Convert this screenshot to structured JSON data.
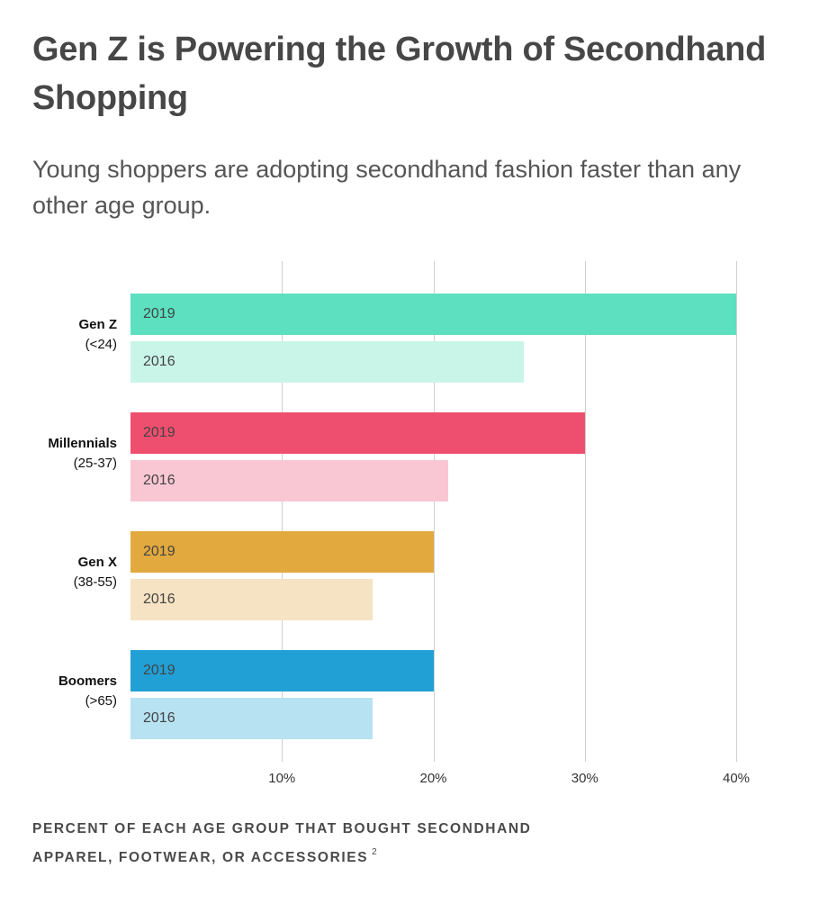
{
  "title": "Gen Z is Powering the Growth of Secondhand Shopping",
  "subtitle": "Young shoppers are adopting secondhand fashion faster than any other age group.",
  "footnote": {
    "text_line1": "PERCENT OF EACH AGE GROUP THAT BOUGHT SECONDHAND",
    "text_line2": "APPAREL, FOOTWEAR, OR ACCESSORIES",
    "ref": "2"
  },
  "chart_data": {
    "type": "bar",
    "orientation": "horizontal",
    "title": "Gen Z is Powering the Growth of Secondhand Shopping",
    "xlabel": "PERCENT OF EACH AGE GROUP THAT BOUGHT SECONDHAND APPAREL, FOOTWEAR, OR ACCESSORIES",
    "xlim": [
      0,
      40
    ],
    "xticks": [
      10,
      20,
      30,
      40
    ],
    "xtick_labels": [
      "10%",
      "20%",
      "30%",
      "40%"
    ],
    "grid": "vertical",
    "categories": [
      {
        "name": "Gen Z",
        "range": "(<24)"
      },
      {
        "name": "Millennials",
        "range": "(25-37)"
      },
      {
        "name": "Gen X",
        "range": "(38-55)"
      },
      {
        "name": "Boomers",
        "range": "(>65)"
      }
    ],
    "series": [
      {
        "name": "2019",
        "values": [
          40,
          30,
          20,
          20
        ],
        "colors": [
          "#5ce0c0",
          "#ef4f6f",
          "#e2a93e",
          "#21a0d6"
        ]
      },
      {
        "name": "2016",
        "values": [
          26,
          21,
          16,
          16
        ],
        "colors": [
          "#c9f5e8",
          "#f9c7d3",
          "#f6e3c3",
          "#b7e2f2"
        ]
      }
    ]
  }
}
